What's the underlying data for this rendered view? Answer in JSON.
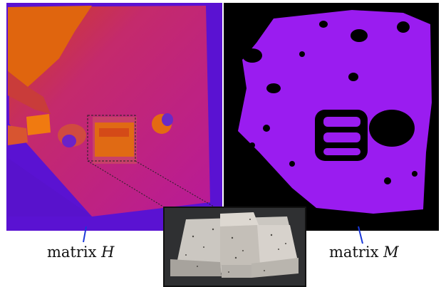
{
  "labels": {
    "matrix_h_word": "matrix",
    "matrix_h_symbol": "H",
    "matrix_m_word": "matrix",
    "matrix_m_symbol": "M"
  },
  "colors": {
    "heightmap_background": "#5a0fd0",
    "heightmap_surface": "#c0208a",
    "heightmap_high": "#e46a10",
    "mask_foreground": "#9a1cf0",
    "mask_background": "#000000",
    "pointer_line": "#1a37d8"
  }
}
